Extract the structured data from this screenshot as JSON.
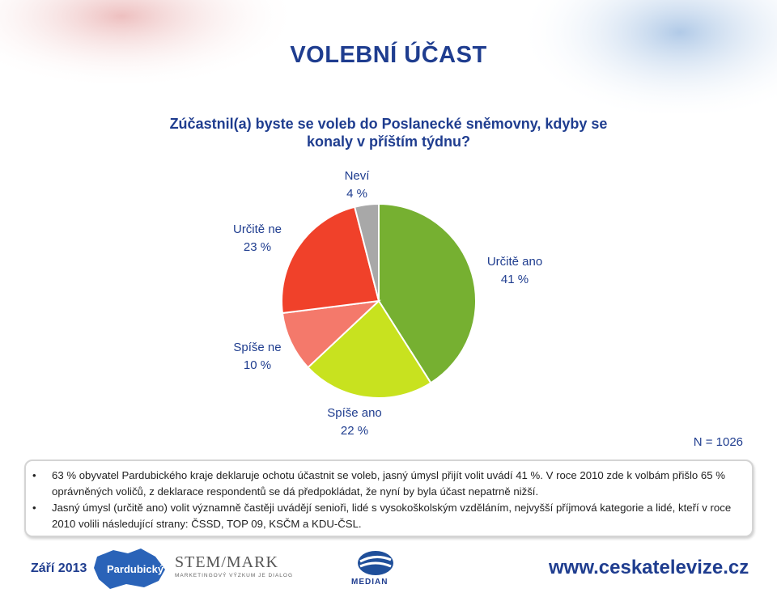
{
  "title": "VOLEBNÍ ÚČAST",
  "question": "Zúčastnil(a) byste se voleb do Poslanecké sněmovny, kdyby se konaly v příštím týdnu?",
  "sample_note": "N = 1026",
  "chart_data": {
    "type": "pie",
    "slices": [
      {
        "name": "Určitě ano",
        "value": 41,
        "label": "41 %",
        "color": "#76b031"
      },
      {
        "name": "Spíše ano",
        "value": 22,
        "label": "22 %",
        "color": "#c8e21f"
      },
      {
        "name": "Spíše ne",
        "value": 10,
        "label": "10 %",
        "color": "#f4796b"
      },
      {
        "name": "Určitě ne",
        "value": 23,
        "label": "23 %",
        "color": "#f0412a"
      },
      {
        "name": "Neví",
        "value": 4,
        "label": "4 %",
        "color": "#a8a8a8"
      }
    ]
  },
  "notes": [
    "63 % obyvatel Pardubického kraje deklaruje ochotu účastnit se voleb, jasný úmysl přijít volit uvádí 41 %. V roce 2010 zde k volbám přišlo 65 % oprávněných voličů, z deklarace respondentů se dá předpokládat, že nyní by byla účast nepatrně nižší.",
    "Jasný úmysl (určitě ano) volit významně častěji uvádějí senioři, lidé s vysokoškolským vzděláním, nejvyšší příjmová kategorie a lidé, kteří v roce 2010 volili následující strany: ČSSD, TOP 09, KSČM a KDU-ČSL."
  ],
  "footer": {
    "date": "Září 2013",
    "region": "Pardubický",
    "stem_name": "STEM/MARK",
    "stem_sub": "MARKETINGOVÝ VÝZKUM JE DIALOG",
    "median": "MEDIAN",
    "website": "www.ceskatelevize.cz"
  },
  "colors": {
    "accent": "#1f3d8f"
  }
}
